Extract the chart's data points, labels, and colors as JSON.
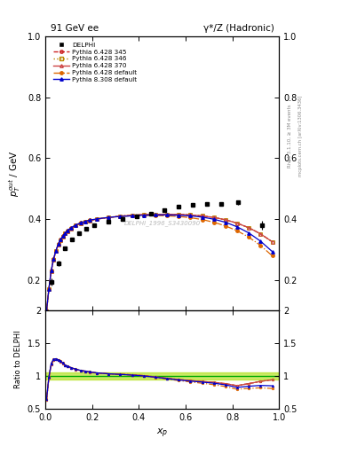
{
  "title_left": "91 GeV ee",
  "title_right": "γ*/Z (Hadronic)",
  "ylabel_main": "$p_T^{out}$ / GeV",
  "ylabel_ratio": "Ratio to DELPHI",
  "xlabel": "$x_p$",
  "rivet_label": "Rivet 3.1.10, ≥ 3M events",
  "mcplots_label": "mcplots.cern.ch [arXiv:1306.3436]",
  "dataset_label": "DELPHI_1996_S3430090",
  "ylim_main": [
    0.1,
    1.0
  ],
  "ylim_ratio": [
    0.5,
    2.0
  ],
  "xlim": [
    0.0,
    1.0
  ],
  "data_x": [
    0.025,
    0.055,
    0.085,
    0.115,
    0.145,
    0.175,
    0.21,
    0.27,
    0.33,
    0.39,
    0.45,
    0.51,
    0.57,
    0.63,
    0.69,
    0.75,
    0.825,
    0.925
  ],
  "data_y": [
    0.195,
    0.255,
    0.305,
    0.335,
    0.355,
    0.368,
    0.381,
    0.393,
    0.401,
    0.408,
    0.418,
    0.43,
    0.44,
    0.447,
    0.45,
    0.45,
    0.455,
    0.38
  ],
  "data_yerr": [
    0.012,
    0.008,
    0.006,
    0.005,
    0.004,
    0.004,
    0.003,
    0.003,
    0.003,
    0.003,
    0.003,
    0.003,
    0.003,
    0.004,
    0.004,
    0.005,
    0.008,
    0.015
  ],
  "mc_x": [
    0.005,
    0.015,
    0.025,
    0.035,
    0.045,
    0.055,
    0.065,
    0.075,
    0.085,
    0.095,
    0.11,
    0.13,
    0.15,
    0.17,
    0.19,
    0.22,
    0.27,
    0.32,
    0.37,
    0.42,
    0.47,
    0.52,
    0.57,
    0.62,
    0.67,
    0.72,
    0.77,
    0.82,
    0.87,
    0.92,
    0.97
  ],
  "mc_345_y": [
    0.098,
    0.17,
    0.23,
    0.268,
    0.295,
    0.316,
    0.331,
    0.343,
    0.353,
    0.361,
    0.37,
    0.379,
    0.386,
    0.391,
    0.396,
    0.4,
    0.406,
    0.41,
    0.413,
    0.415,
    0.416,
    0.416,
    0.416,
    0.414,
    0.411,
    0.406,
    0.398,
    0.387,
    0.372,
    0.352,
    0.326
  ],
  "mc_346_y": [
    0.098,
    0.17,
    0.23,
    0.268,
    0.295,
    0.316,
    0.331,
    0.343,
    0.353,
    0.361,
    0.37,
    0.379,
    0.386,
    0.391,
    0.396,
    0.4,
    0.406,
    0.41,
    0.413,
    0.415,
    0.416,
    0.416,
    0.416,
    0.414,
    0.411,
    0.406,
    0.398,
    0.387,
    0.372,
    0.352,
    0.326
  ],
  "mc_370_y": [
    0.098,
    0.17,
    0.23,
    0.268,
    0.295,
    0.316,
    0.331,
    0.343,
    0.353,
    0.361,
    0.37,
    0.379,
    0.386,
    0.391,
    0.396,
    0.4,
    0.406,
    0.41,
    0.413,
    0.415,
    0.416,
    0.416,
    0.416,
    0.414,
    0.411,
    0.406,
    0.398,
    0.387,
    0.372,
    0.352,
    0.326
  ],
  "mc_def6_y": [
    0.1,
    0.172,
    0.232,
    0.27,
    0.297,
    0.318,
    0.333,
    0.345,
    0.355,
    0.363,
    0.372,
    0.381,
    0.388,
    0.393,
    0.397,
    0.401,
    0.406,
    0.409,
    0.411,
    0.412,
    0.412,
    0.411,
    0.409,
    0.405,
    0.399,
    0.39,
    0.378,
    0.362,
    0.341,
    0.314,
    0.28
  ],
  "mc_def8_y": [
    0.1,
    0.172,
    0.232,
    0.27,
    0.297,
    0.318,
    0.333,
    0.345,
    0.355,
    0.363,
    0.372,
    0.381,
    0.388,
    0.393,
    0.397,
    0.401,
    0.406,
    0.409,
    0.411,
    0.413,
    0.414,
    0.414,
    0.413,
    0.411,
    0.407,
    0.4,
    0.39,
    0.375,
    0.355,
    0.328,
    0.294
  ],
  "color_345": "#cc2222",
  "color_346": "#bb8800",
  "color_370": "#cc4444",
  "color_def6": "#dd6600",
  "color_def8": "#0000cc",
  "color_data": "#000000",
  "bg_color": "#ffffff",
  "green_band_color": "#aadd00",
  "ref_line_color": "#00aa00"
}
